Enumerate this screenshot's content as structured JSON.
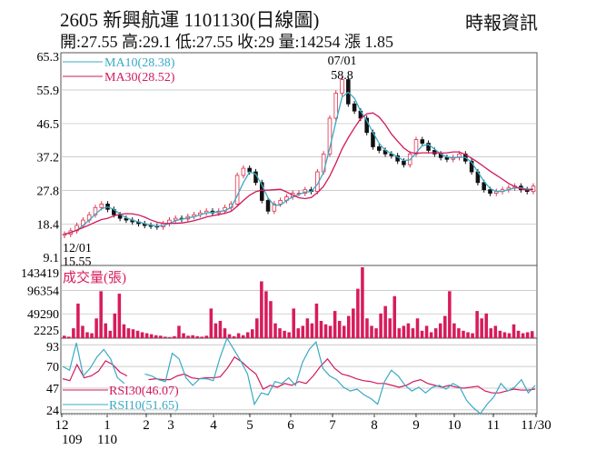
{
  "header": {
    "title": "2605  新興航運 1101130(日線圖)",
    "source": "時報資訊",
    "quote": "開:27.55 高:29.1 低:27.55 收:29 量:14254 漲 1.85"
  },
  "colors": {
    "ma10": "#3aa9c4",
    "ma30": "#d0195e",
    "up": "#e0304a",
    "down": "#111111",
    "volume": "#d81b5a",
    "rsi30": "#d0195e",
    "rsi10": "#3aa9c4",
    "grid": "#bbbbbb"
  },
  "chart_data": [
    {
      "type": "candlestick",
      "panel": "price",
      "legend": [
        {
          "name": "MA10(28.38)",
          "color": "#3aa9c4"
        },
        {
          "name": "MA30(28.52)",
          "color": "#d0195e"
        }
      ],
      "yticks": [
        65.3,
        55.9,
        46.5,
        37.2,
        27.8,
        18.4,
        9.1
      ],
      "ylim": [
        9.1,
        65.3
      ],
      "annotations": [
        {
          "label": "07/01",
          "value": "58.8"
        },
        {
          "label": "12/01",
          "value": "15.55"
        }
      ],
      "close": [
        15.55,
        16.5,
        18,
        19.5,
        21,
        23,
        24,
        22.5,
        21,
        20,
        19.5,
        19,
        18.5,
        18,
        17.8,
        17.6,
        18.5,
        19.5,
        20,
        19.8,
        20.5,
        21,
        21.5,
        22,
        21.5,
        22,
        23,
        24,
        32,
        34,
        33,
        30,
        25,
        22,
        24,
        25,
        26,
        27,
        27,
        28,
        27.5,
        33,
        38,
        48,
        55,
        58.8,
        52,
        50,
        48,
        44,
        40,
        39,
        38,
        37.5,
        36,
        35,
        38,
        42,
        41,
        39,
        38,
        37,
        36.5,
        37,
        38,
        36,
        33,
        30,
        28,
        27,
        27.5,
        28,
        28.5,
        29,
        28,
        27.5,
        29
      ],
      "grid": true
    },
    {
      "type": "bar",
      "panel": "volume",
      "title": "成交量(張)",
      "yticks": [
        143419,
        96354,
        49290,
        2225
      ],
      "ylim": [
        0,
        143419
      ],
      "values": [
        5000,
        3000,
        20000,
        70000,
        25000,
        12000,
        10000,
        40000,
        95000,
        30000,
        15000,
        50000,
        90000,
        28000,
        20000,
        18000,
        15000,
        12000,
        10000,
        8000,
        6000,
        5000,
        3000,
        2000,
        4000,
        25000,
        10000,
        5000,
        6000,
        4000,
        3000,
        5000,
        60000,
        30000,
        35000,
        20000,
        8000,
        4000,
        10000,
        6000,
        12000,
        18000,
        40000,
        115000,
        95000,
        75000,
        30000,
        20000,
        15000,
        12000,
        60000,
        20000,
        25000,
        40000,
        30000,
        70000,
        35000,
        28000,
        25000,
        55000,
        35000,
        25000,
        45000,
        60000,
        100000,
        143419,
        40000,
        25000,
        20000,
        50000,
        65000,
        40000,
        85000,
        20000,
        25000,
        30000,
        20000,
        40000,
        15000,
        25000,
        12000,
        20000,
        30000,
        45000,
        95000,
        30000,
        20000,
        15000,
        12000,
        10000,
        55000,
        40000,
        50000,
        20000,
        25000,
        15000,
        12000,
        10000,
        28000,
        15000,
        10000,
        12000,
        14254
      ],
      "grid": true
    },
    {
      "type": "line",
      "panel": "rsi",
      "yticks": [
        93,
        70,
        47,
        24
      ],
      "ylim": [
        20,
        100
      ],
      "series": [
        {
          "name": "RSI30(46.07)",
          "color": "#d0195e",
          "values": [
            57,
            55,
            72,
            58,
            60,
            65,
            76,
            72,
            64,
            60,
            null,
            null,
            56,
            57,
            56,
            56,
            60,
            62,
            58,
            57,
            58,
            58,
            59,
            68,
            80,
            75,
            68,
            62,
            46,
            50,
            48,
            52,
            50,
            54,
            52,
            60,
            70,
            78,
            68,
            62,
            60,
            57,
            55,
            54,
            52,
            52,
            50,
            48,
            50,
            54,
            56,
            52,
            50,
            48,
            50,
            48,
            47,
            48,
            49,
            44,
            42,
            42,
            44,
            46,
            45,
            45,
            46
          ]
        },
        {
          "name": "RSI10(51.65)",
          "color": "#3aa9c4",
          "values": [
            70,
            66,
            95,
            60,
            68,
            80,
            88,
            78,
            58,
            52,
            null,
            null,
            62,
            60,
            56,
            54,
            84,
            78,
            58,
            50,
            57,
            57,
            55,
            80,
            100,
            88,
            76,
            62,
            30,
            42,
            40,
            54,
            52,
            58,
            50,
            74,
            88,
            96,
            68,
            60,
            56,
            48,
            44,
            46,
            40,
            36,
            30,
            54,
            66,
            60,
            50,
            44,
            48,
            42,
            48,
            50,
            46,
            52,
            48,
            34,
            26,
            20,
            30,
            38,
            52,
            44,
            48,
            56,
            42,
            50
          ]
        }
      ],
      "grid": true
    }
  ],
  "xaxis": {
    "months": [
      "12",
      "1",
      "2",
      "3",
      "4",
      "5",
      "6",
      "7",
      "8",
      "9",
      "10",
      "11",
      "11/30"
    ],
    "years": [
      "109",
      "110"
    ]
  }
}
